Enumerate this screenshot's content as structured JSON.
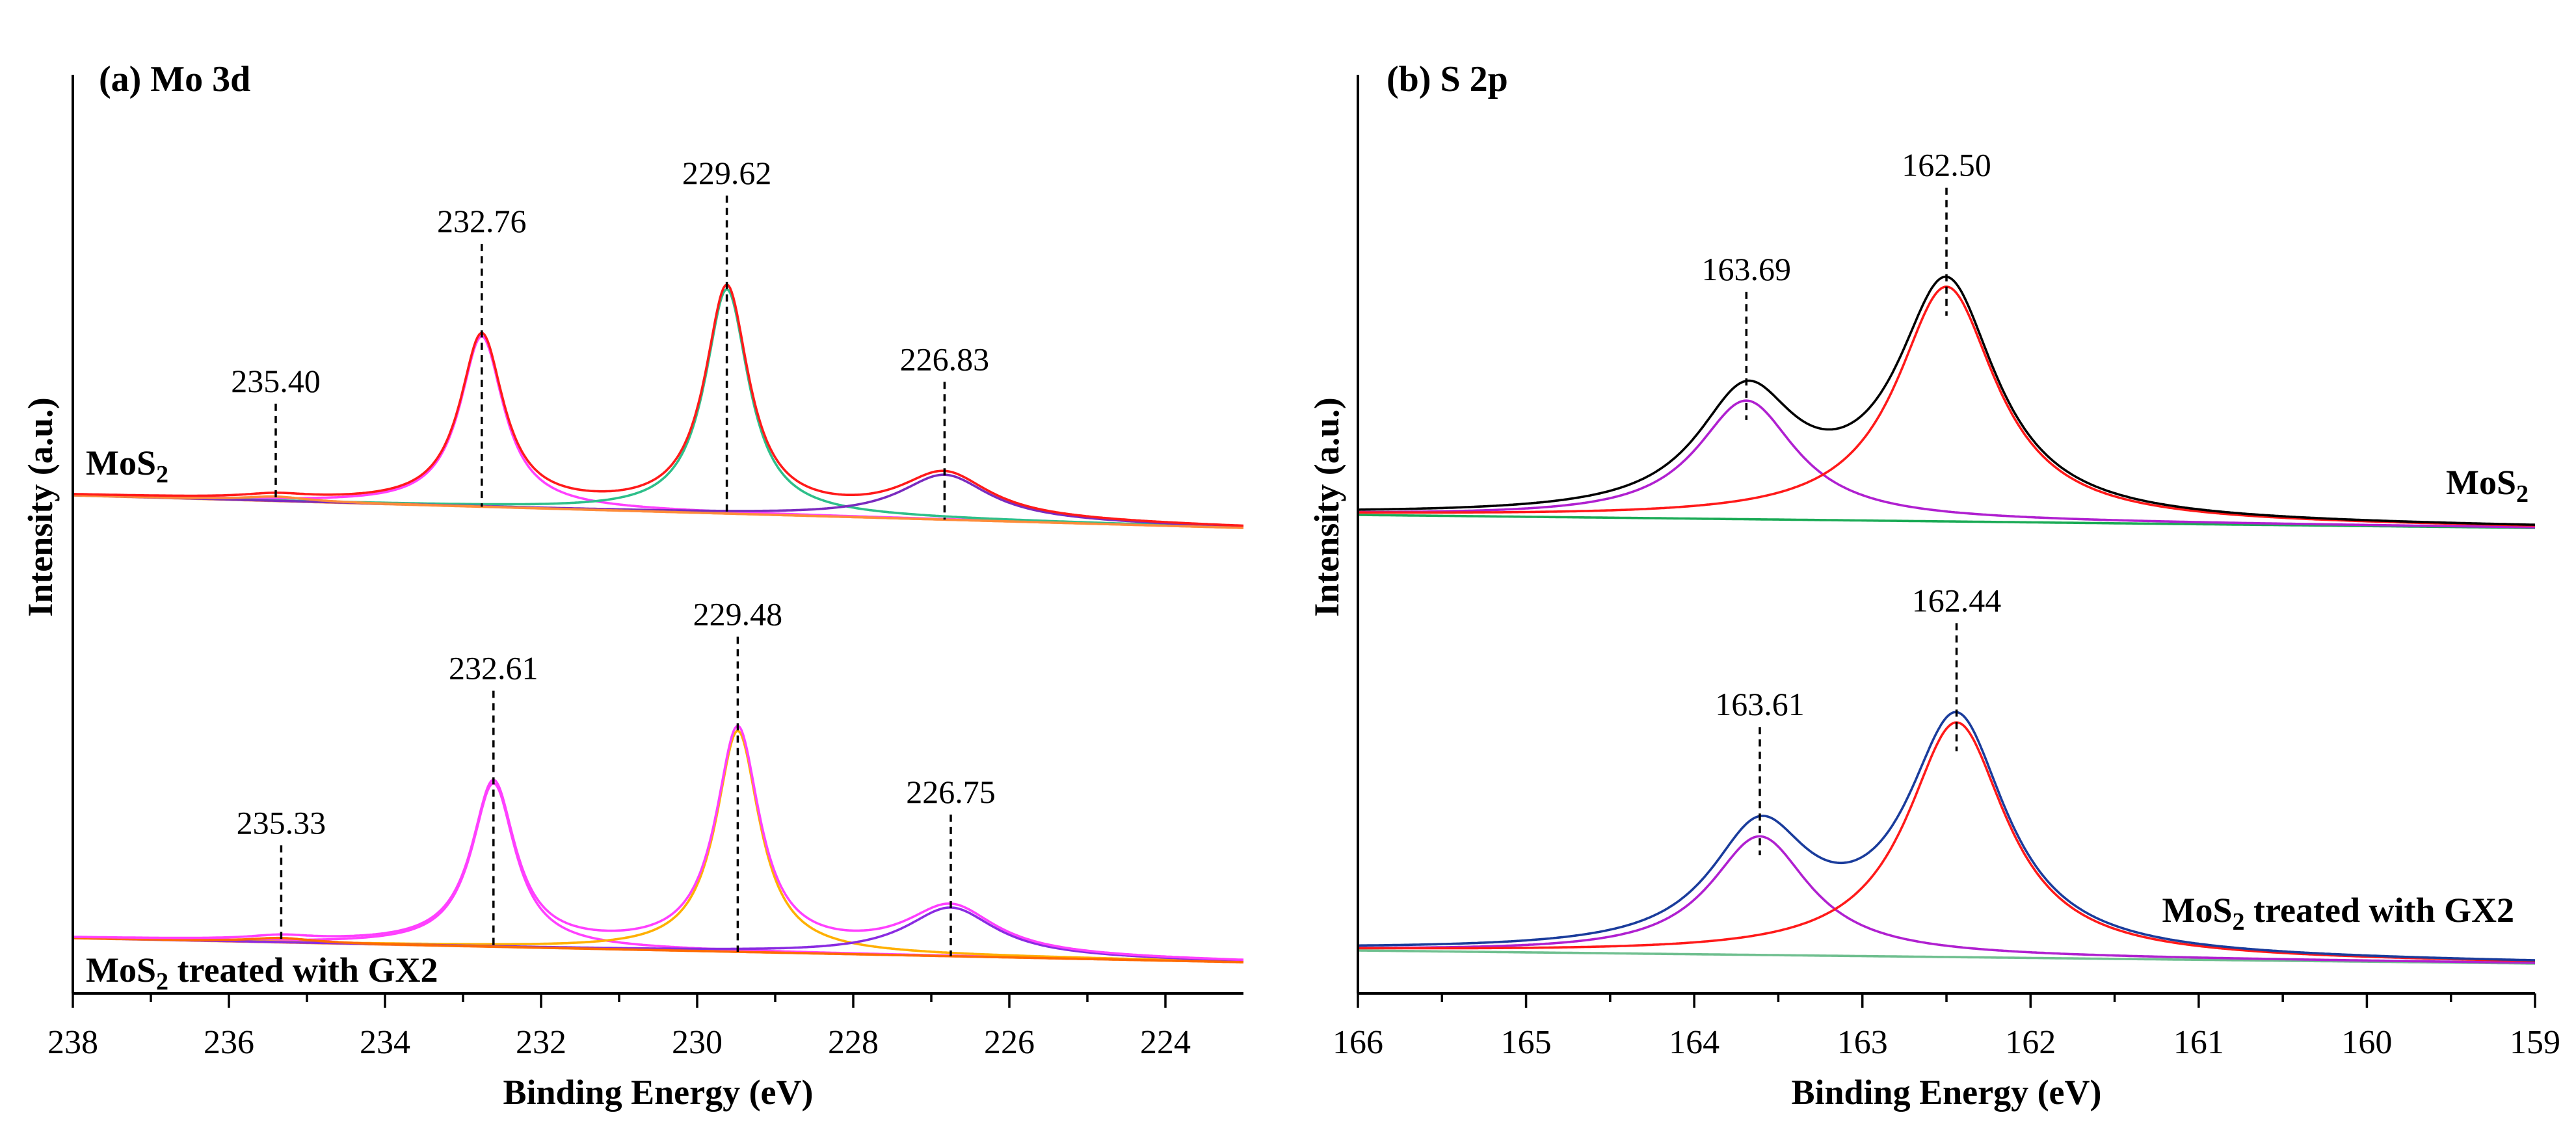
{
  "chart_data": [
    {
      "type": "line",
      "panel_title": "(a) Mo 3d",
      "xlabel": "Binding Energy (eV)",
      "ylabel": "Intensity (a.u.)",
      "xlim": [
        238,
        223
      ],
      "x_ticks": [
        238,
        236,
        234,
        232,
        230,
        228,
        226,
        224
      ],
      "y_unit_note": "intensity in arbitrary units; spectra vertically offset, no numeric y ticks",
      "spectra": [
        {
          "name": "MoS2",
          "label_text": "MoS",
          "label_sub": "2",
          "label_suffix": "",
          "baseline": {
            "start": 0.08,
            "end": 0.0
          },
          "components": [
            {
              "color": "#ff40ff",
              "peak": 232.76,
              "height": 0.76,
              "width": 0.34
            },
            {
              "color": "#2ebf8a",
              "peak": 229.62,
              "height": 1.0,
              "width": 0.34
            },
            {
              "color": "#7a2bbf",
              "peak": 226.83,
              "height": 0.2,
              "width": 0.7
            },
            {
              "color": "#ff8c3a",
              "peak": 235.4,
              "height": 0.02,
              "width": 0.5
            }
          ],
          "envelope_color": "#ff1a1a",
          "peak_labels": [
            {
              "text": "235.40",
              "x": 235.4
            },
            {
              "text": "232.76",
              "x": 232.76
            },
            {
              "text": "229.62",
              "x": 229.62
            },
            {
              "text": "226.83",
              "x": 226.83
            }
          ]
        },
        {
          "name": "MoS2 treated with GX2",
          "label_text": "MoS",
          "label_sub": "2",
          "label_suffix": " treated with GX2",
          "baseline": {
            "start": 0.05,
            "end": 0.0
          },
          "components": [
            {
              "color": "#ff40ff",
              "peak": 232.61,
              "height": 0.74,
              "width": 0.34
            },
            {
              "color": "#ffb000",
              "peak": 229.48,
              "height": 1.0,
              "width": 0.34
            },
            {
              "color": "#8a2be2",
              "peak": 226.75,
              "height": 0.22,
              "width": 0.7
            },
            {
              "color": "#ff6a00",
              "peak": 235.33,
              "height": 0.02,
              "width": 0.5
            }
          ],
          "envelope_color": "#ff40ff",
          "peak_labels": [
            {
              "text": "235.33",
              "x": 235.33
            },
            {
              "text": "232.61",
              "x": 232.61
            },
            {
              "text": "229.48",
              "x": 229.48
            },
            {
              "text": "226.75",
              "x": 226.75
            }
          ]
        }
      ]
    },
    {
      "type": "line",
      "panel_title": "(b) S 2p",
      "xlabel": "Binding Energy (eV)",
      "ylabel": "Intensity (a.u.)",
      "xlim": [
        166,
        159
      ],
      "x_ticks": [
        166,
        165,
        164,
        163,
        162,
        161,
        160,
        159
      ],
      "y_unit_note": "intensity in arbitrary units; spectra vertically offset, no numeric y ticks",
      "spectra": [
        {
          "name": "MoS2",
          "label_text": "MoS",
          "label_sub": "2",
          "label_suffix": "",
          "baseline": {
            "start": 0.02,
            "end": 0.0
          },
          "components": [
            {
              "color": "#b020d0",
              "peak": 163.69,
              "height": 0.48,
              "width": 0.36
            },
            {
              "color": "#ff1a1a",
              "peak": 162.5,
              "height": 0.95,
              "width": 0.36
            }
          ],
          "envelope_color": "#000000",
          "baseline_color": "#1aaa55",
          "peak_labels": [
            {
              "text": "163.69",
              "x": 163.69
            },
            {
              "text": "162.50",
              "x": 162.5
            }
          ]
        },
        {
          "name": "MoS2 treated with GX2",
          "label_text": "MoS",
          "label_sub": "2",
          "label_suffix": " treated with GX2",
          "baseline": {
            "start": 0.02,
            "end": 0.0
          },
          "components": [
            {
              "color": "#b020d0",
              "peak": 163.61,
              "height": 0.48,
              "width": 0.36
            },
            {
              "color": "#ff1a1a",
              "peak": 162.44,
              "height": 0.95,
              "width": 0.36
            }
          ],
          "envelope_color": "#1a3c9c",
          "baseline_color": "#6fbf8f",
          "peak_labels": [
            {
              "text": "163.61",
              "x": 163.61
            },
            {
              "text": "162.44",
              "x": 162.44
            }
          ]
        }
      ]
    }
  ]
}
